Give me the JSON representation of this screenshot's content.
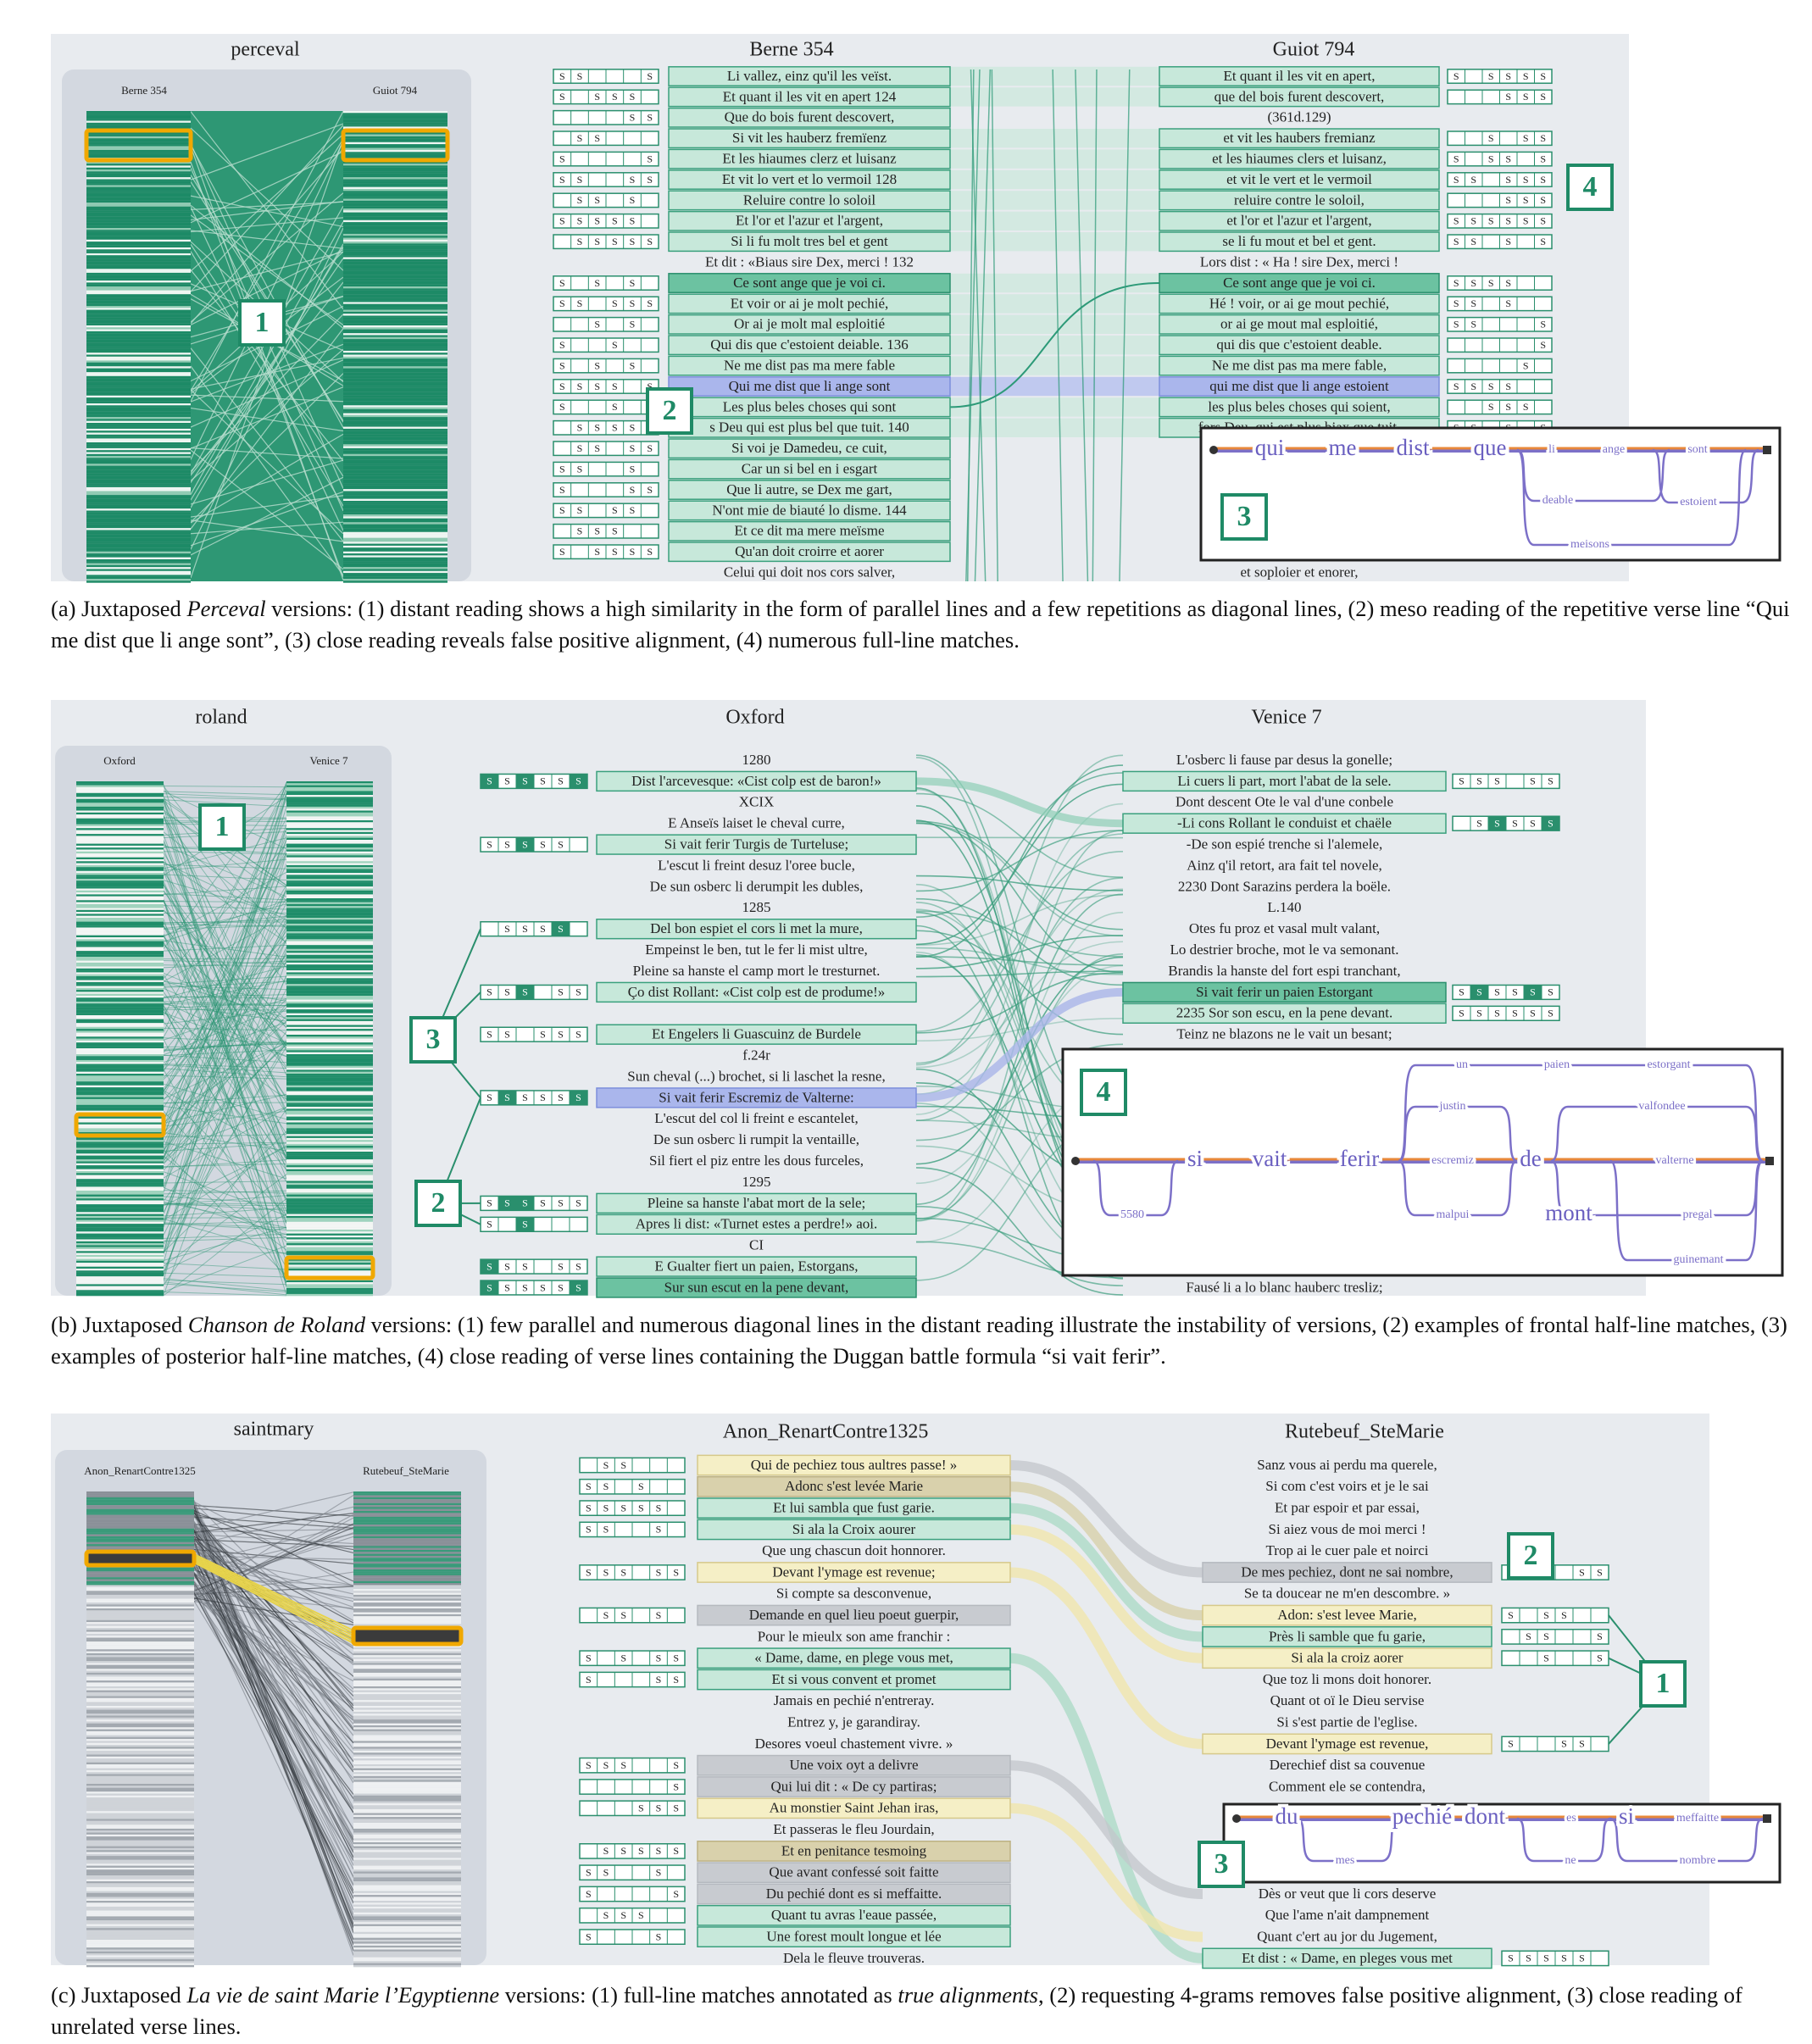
{
  "segment_label": "S",
  "panels": [
    {
      "title": "perceval",
      "left_label": "Berne 354",
      "right_label": "Guiot 794",
      "center_title": "Berne 354",
      "right_title": "Guiot 794",
      "center_text": [
        "Li vallez, einz qu'il les veïst.",
        "Et quant il les vit en apert 124",
        "Que do bois furent descovert,",
        "Si vit les hauberz fremïenz",
        "Et les hiaumes clerz et luisanz",
        "Et vit lo vert et lo vermoil 128",
        "Reluire contre lo soloil",
        "Et l'or et l'azur et l'argent,",
        "Si li fu molt tres bel et gent",
        "Et dit : «Biaus sire Dex, merci ! 132",
        "Ce sont ange que je voi ci.",
        "Et voir or ai je molt pechié,",
        "Or ai je molt mal esploitié",
        "Qui dis que c'estoient deiable. 136",
        "Ne me dist pas ma mere fable",
        "Qui me dist que li ange sont",
        "Les plus beles choses qui sont",
        "s Deu qui est plus bel que tuit. 140",
        "Si voi je Damedeu, ce cuit,",
        "Car un si bel en i esgart",
        "Que li autre, se Dex me gart,",
        "N'ont mie de biauté lo disme. 144",
        "Et ce dit ma mere meïsme",
        "Qu'an doit croirre et aorer",
        "Celui qui doit nos cors salver,"
      ],
      "right_text": [
        "Et quant il les vit en apert,",
        "que del bois furent descovert,",
        "(361d.129)",
        "et vit les haubers fremianz",
        "et les hiaumes clers et luisanz,",
        "et vit le vert et le vermoil",
        "reluire contre le soloil,",
        "et l'or et l'azur et l'argent,",
        "se li fu mout et bel et gent.",
        "Lors dist : « Ha ! sire Dex, merci !",
        "Ce sont ange que je voi ci.",
        "Hé ! voir, or ai ge mout pechié,",
        "or ai ge mout mal esploitié,",
        "qui dis que c'estoient deable.",
        "Ne me dist pas ma mere fable,",
        "qui me dist que li ange estoient",
        "les plus beles choses qui soient,",
        "fors Deu, qui est plus biax que tuit."
      ],
      "right_tail": [
        "et soploier et enorer,"
      ],
      "badges": [
        "1",
        "2",
        "3",
        "4"
      ],
      "graph_words": [
        "qui",
        "me",
        "dist",
        "que",
        "li",
        "ange",
        "sont",
        "deable",
        "estoient",
        "meisons"
      ],
      "caption": [
        {
          "text": "(a) Juxtaposed "
        },
        {
          "text": "Perceval",
          "italic": true
        },
        {
          "text": " versions: (1) distant reading shows a high similarity in the form of parallel lines and a few repetitions as diagonal lines, (2) meso reading of the repetitive verse line “Qui me dist que li ange sont”, (3) close reading reveals false positive alignment, (4) numerous full-line matches."
        }
      ]
    },
    {
      "title": "roland",
      "left_label": "Oxford",
      "right_label": "Venice 7",
      "center_title": "Oxford",
      "right_title": "Venice 7",
      "center_text": [
        "1280",
        "Dist l'arcevesque: «Cist colp est de baron!»",
        "XCIX",
        "E Anseïs laiset le cheval curre,",
        "Si vait ferir Turgis de Turteluse;",
        "L'escut li freint desuz l'oree bucle,",
        "De sun osberc li derumpit les dubles,",
        "1285",
        "Del bon espiet el cors li met la mure,",
        "Empeinst le ben, tut le fer li mist ultre,",
        "Pleine sa hanste el camp mort le tresturnet.",
        "Ço dist Rollant: «Cist colp est de produme!»",
        "Et Engelers li Guascuinz de Burdele",
        "f.24r",
        "Sun cheval (...) brochet, si li laschet la resne,",
        "Si vait ferir Escremiz de Valterne:",
        "L'escut del col li freint e escantelet,",
        "De sun osberc li rumpit la ventaille,",
        "Sil fiert el piz entre les dous furceles,",
        "1295",
        "Pleine sa hanste l'abat mort de la sele;",
        "Apres li dist: «Turnet estes a perdre!» aoi.",
        "CI",
        "E Gualter fiert un paien, Estorgans,",
        "Sur sun escut en la pene devant,"
      ],
      "right_text": [
        "L'osberc li fause par desus la gonelle;",
        "Li cuers li part, mort l'abat de la sele.",
        "Dont descent Ote le val d'une conbele",
        "-Li cons Rollant le conduist et chaële",
        "-De son espié trenche si l'alemele,",
        "Ainz q'il retort, ara fait tel novele,",
        "2230 Dont Sarazins perdera la boële.",
        "L.140",
        "Otes fu proz et vasal mult valant,",
        "Lo destrier broche, mot le va semonant.",
        "Brandis la hanste del fort espi tranchant,",
        "Si vait ferir un paien Estorgant",
        "2235 Sor son escu, en la pene devant.",
        "Teinz ne blazons ne le vait un besant;"
      ],
      "right_tail": [
        "Fausé li a lo blanc hauberc tresliz;"
      ],
      "badges": [
        "1",
        "2",
        "3",
        "4"
      ],
      "graph_words": [
        "si",
        "vait",
        "ferir",
        "escremiz",
        "de",
        "valterne",
        "un",
        "paien",
        "estorgant",
        "justin",
        "valfondee",
        "malpui",
        "mont",
        "pregal",
        "guinemant",
        "5580"
      ],
      "caption": [
        {
          "text": "(b) Juxtaposed "
        },
        {
          "text": "Chanson de Roland",
          "italic": true
        },
        {
          "text": " versions: (1) few parallel and numerous diagonal lines in the distant reading illustrate the instability of versions, (2) examples of frontal half-line matches, (3) examples of posterior half-line matches, (4) close reading of verse lines containing the Duggan battle formula “si vait ferir”."
        }
      ]
    },
    {
      "title": "saintmary",
      "left_label": "Anon_RenartContre1325",
      "right_label": "Rutebeuf_SteMarie",
      "center_title": "Anon_RenartContre1325",
      "right_title": "Rutebeuf_SteMarie",
      "center_text": [
        "Qui de pechiez tous aultres passe! »",
        "Adonc s'est levée Marie",
        "Et lui sambla que fust garie.",
        "Si ala la Croix aourer",
        "Que ung chascun doit honnorer.",
        "Devant l'ymage est revenue;",
        "Si compte sa desconvenue,",
        "Demande en quel lieu poeut guerpir,",
        "Pour le mieulx son ame franchir :",
        "« Dame, dame, en plege vous met,",
        "Et si vous convent et promet",
        "Jamais en pechié n'entreray.",
        "Entrez y, je garandiray.",
        "Desores voeul chastement vivre. »",
        "Une voix oyt a delivre",
        "Qui lui dit : « De cy partiras;",
        "Au monstier Saint Jehan iras,",
        "Et passeras le fleu Jourdain,",
        "Et en penitance tesmoing",
        "Que avant confessé soit faitte",
        "Du pechié dont es si meffaitte.",
        "Quant tu avras l'eaue passée,",
        "Une forest moult longue et lée",
        "Dela le fleuve trouveras."
      ],
      "right_text": [
        "Sanz vous ai perdu ma querele,",
        "Si com c'est voirs et je le sai",
        "Et par espoir et par essai,",
        "Si aiez vous de moi merci !",
        "Trop ai le cuer pale et noirci",
        "De mes pechiez, dont ne sai nombre,",
        "Se ta doucear ne m'en descombre. »",
        "Adon: s'est levee Marie,",
        "Près li samble que fu garie,",
        "Si ala la croiz aorer",
        "Que toz li mons doit honorer.",
        "Quant ot oï le Dieu servise",
        "Si s'est partie de l'eglise.",
        "Devant l'ymage est revenue,",
        "Derechief dist sa couvenue",
        "Comment ele se contendra,"
      ],
      "right_tail": [
        "Dès or veut que li cors deserve",
        "Que l'ame n'ait dampnement",
        "Quant c'ert au jor du Jugement,",
        "Et dist : « Dame, en pleges vous met"
      ],
      "badges": [
        "1",
        "2",
        "3"
      ],
      "graph_words": [
        "du",
        "pechié",
        "dont",
        "es",
        "si",
        "meffaitte",
        "mes",
        "ne",
        "nombre"
      ],
      "caption": [
        {
          "text": "(c) Juxtaposed "
        },
        {
          "text": "La vie de saint Marie l’Egyptienne",
          "italic": true
        },
        {
          "text": " versions: (1) full-line matches annotated as "
        },
        {
          "text": "true alignments",
          "italic": true
        },
        {
          "text": ", (2) requesting 4-grams removes false positive alignment, (3) close reading of unrelated verse lines."
        }
      ]
    }
  ]
}
